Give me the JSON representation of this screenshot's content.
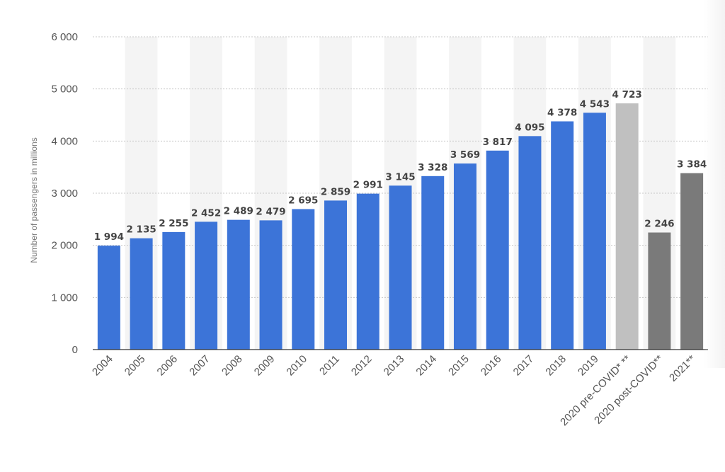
{
  "chart_data": {
    "type": "bar",
    "title": "",
    "xlabel": "",
    "ylabel": "Number of passengers in millions",
    "ylim": [
      0,
      6000
    ],
    "yticks": [
      0,
      1000,
      2000,
      3000,
      4000,
      5000,
      6000
    ],
    "ytick_labels": [
      "0",
      "1 000",
      "2 000",
      "3 000",
      "4 000",
      "5 000",
      "6 000"
    ],
    "grid": true,
    "categories": [
      "2004",
      "2005",
      "2006",
      "2007",
      "2008",
      "2009",
      "2010",
      "2011",
      "2012",
      "2013",
      "2014",
      "2015",
      "2016",
      "2017",
      "2018",
      "2019",
      "2020 pre-COVID* **",
      "2020 post-COVID**",
      "2021**"
    ],
    "values": [
      1994,
      2135,
      2255,
      2452,
      2489,
      2479,
      2695,
      2859,
      2991,
      3145,
      3328,
      3569,
      3817,
      4095,
      4378,
      4543,
      4723,
      2246,
      3384
    ],
    "value_labels": [
      "1 994",
      "2 135",
      "2 255",
      "2 452",
      "2 489",
      "2 479",
      "2 695",
      "2 859",
      "2 991",
      "3 145",
      "3 328",
      "3 569",
      "3 817",
      "4 095",
      "4 378",
      "4 543",
      "4 723",
      "2 246",
      "3 384"
    ],
    "bar_colors": [
      "#3c74d8",
      "#3c74d8",
      "#3c74d8",
      "#3c74d8",
      "#3c74d8",
      "#3c74d8",
      "#3c74d8",
      "#3c74d8",
      "#3c74d8",
      "#3c74d8",
      "#3c74d8",
      "#3c74d8",
      "#3c74d8",
      "#3c74d8",
      "#3c74d8",
      "#3c74d8",
      "#c0c0c0",
      "#7a7a7a",
      "#7a7a7a"
    ]
  }
}
